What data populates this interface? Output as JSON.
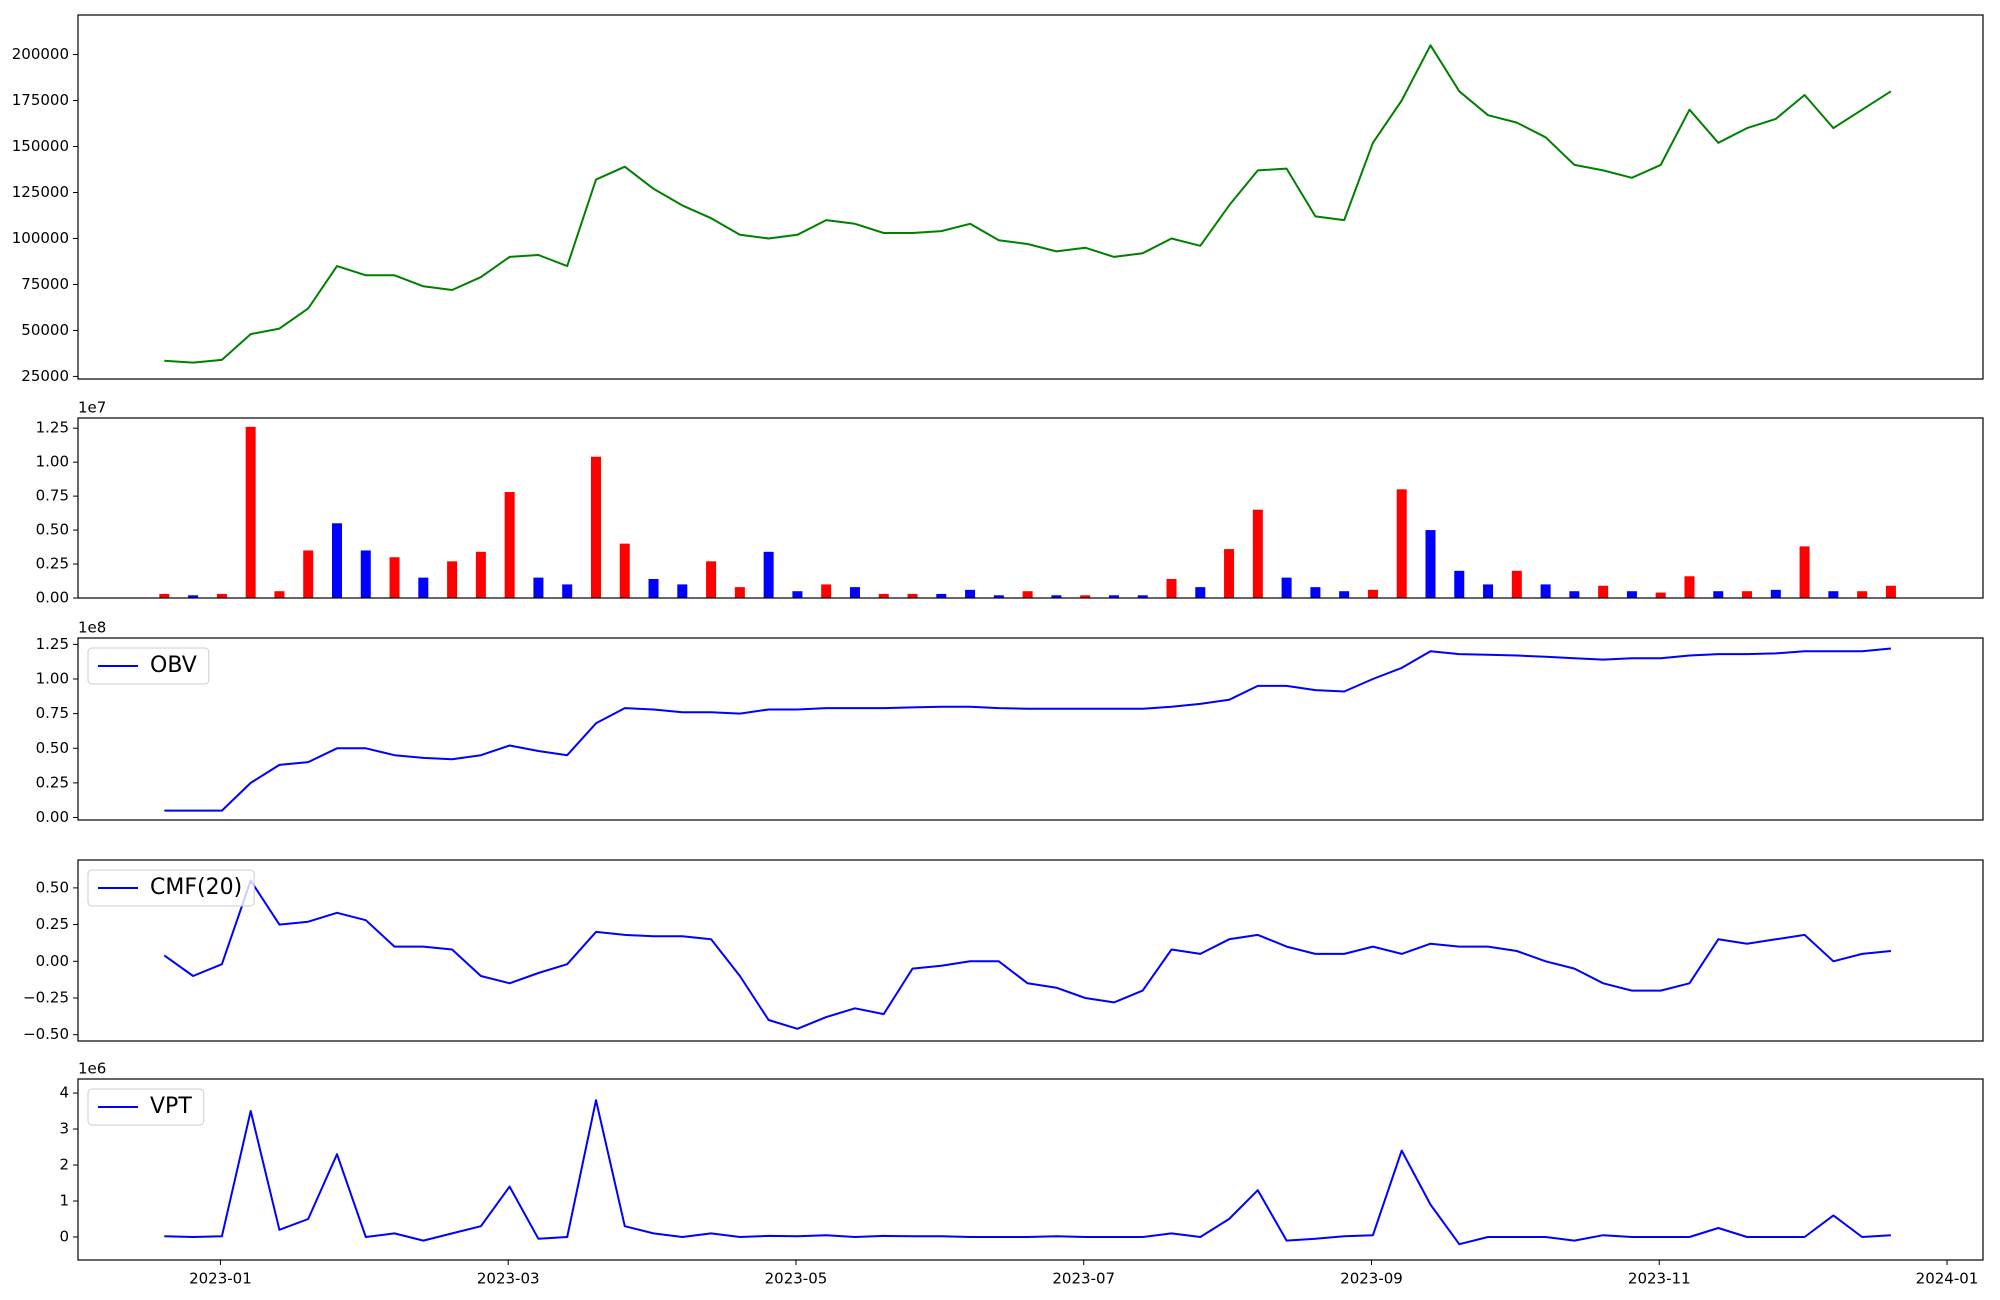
{
  "chart_data": [
    {
      "type": "line",
      "x": [
        -0.39,
        -0.19,
        0.01,
        0.21,
        0.41,
        0.61,
        0.81,
        1.01,
        1.21,
        1.41,
        1.61,
        1.81,
        2.01,
        2.21,
        2.41,
        2.61,
        2.81,
        3.01,
        3.21,
        3.41,
        3.61,
        3.81,
        4.01,
        4.21,
        4.41,
        4.61,
        4.81,
        5.01,
        5.21,
        5.41,
        5.61,
        5.81,
        6.01,
        6.21,
        6.41,
        6.61,
        6.81,
        7.01,
        7.21,
        7.41,
        7.61,
        7.81,
        8.01,
        8.21,
        8.41,
        8.61,
        8.81,
        9.01,
        9.21,
        9.41,
        9.61,
        9.81,
        10.01,
        10.21,
        10.41,
        10.61,
        10.81,
        11.01,
        11.21,
        11.41,
        11.61
      ],
      "series": [
        {
          "color": "#008000",
          "values": [
            33500,
            32500,
            34000,
            48000,
            51000,
            62000,
            85000,
            80000,
            80000,
            74000,
            72000,
            79000,
            90000,
            91000,
            85000,
            132000,
            139000,
            127000,
            118000,
            111000,
            102000,
            100000,
            102000,
            110000,
            108000,
            103000,
            103000,
            104000,
            108000,
            99000,
            97000,
            93000,
            95000,
            90000,
            92000,
            100000,
            96000,
            118000,
            137000,
            138000,
            112000,
            110000,
            152000,
            175000,
            205000,
            180000,
            167000,
            163000,
            155000,
            140000,
            137000,
            133000,
            140000,
            170000,
            152000,
            160000,
            165000,
            178000,
            160000,
            170000,
            180000
          ]
        }
      ],
      "xlim": [
        -0.99,
        12.25
      ],
      "ylim": [
        23600,
        221500
      ],
      "yticks": [
        25000,
        50000,
        75000,
        100000,
        125000,
        150000,
        175000,
        200000
      ]
    },
    {
      "type": "bar",
      "x": [
        -0.39,
        -0.19,
        0.01,
        0.21,
        0.41,
        0.61,
        0.81,
        1.01,
        1.21,
        1.41,
        1.61,
        1.81,
        2.01,
        2.21,
        2.41,
        2.61,
        2.81,
        3.01,
        3.21,
        3.41,
        3.61,
        3.81,
        4.01,
        4.21,
        4.41,
        4.61,
        4.81,
        5.01,
        5.21,
        5.41,
        5.61,
        5.81,
        6.01,
        6.21,
        6.41,
        6.61,
        6.81,
        7.01,
        7.21,
        7.41,
        7.61,
        7.81,
        8.01,
        8.21,
        8.41,
        8.61,
        8.81,
        9.01,
        9.21,
        9.41,
        9.61,
        9.81,
        10.01,
        10.21,
        10.41,
        10.61,
        10.81,
        11.01,
        11.21,
        11.41,
        11.61
      ],
      "values": [
        300000,
        200000,
        300000,
        12600000,
        500000,
        3500000,
        5500000,
        3500000,
        3000000,
        1500000,
        2700000,
        3400000,
        7800000,
        1500000,
        1000000,
        10400000,
        4000000,
        1400000,
        1000000,
        2700000,
        800000,
        3400000,
        500000,
        1000000,
        800000,
        300000,
        300000,
        300000,
        600000,
        200000,
        500000,
        200000,
        200000,
        200000,
        200000,
        1400000,
        800000,
        3600000,
        6500000,
        1500000,
        800000,
        500000,
        600000,
        8000000,
        5000000,
        2000000,
        1000000,
        2000000,
        1000000,
        500000,
        900000,
        500000,
        400000,
        1600000,
        500000,
        500000,
        600000,
        3800000,
        500000,
        500000,
        900000
      ],
      "bar_colors": [
        "red",
        "blue",
        "red",
        "red",
        "red",
        "red",
        "blue",
        "blue",
        "red",
        "blue",
        "red",
        "red",
        "red",
        "blue",
        "blue",
        "red",
        "red",
        "blue",
        "blue",
        "red",
        "red",
        "blue",
        "blue",
        "red",
        "blue",
        "red",
        "red",
        "blue",
        "blue",
        "blue",
        "red",
        "blue",
        "red",
        "blue",
        "blue",
        "red",
        "blue",
        "red",
        "red",
        "blue",
        "blue",
        "blue",
        "red",
        "red",
        "blue",
        "blue",
        "blue",
        "red",
        "blue",
        "blue",
        "red",
        "blue",
        "red",
        "red",
        "blue",
        "red",
        "blue",
        "red",
        "blue",
        "red",
        "red"
      ],
      "xlim": [
        -0.99,
        12.25
      ],
      "ylim": [
        0,
        13250000
      ],
      "y_offset_label": "1e7",
      "yticks": [
        {
          "value": 0,
          "label": "0.00"
        },
        {
          "value": 2500000,
          "label": "0.25"
        },
        {
          "value": 5000000,
          "label": "0.50"
        },
        {
          "value": 7500000,
          "label": "0.75"
        },
        {
          "value": 10000000,
          "label": "1.00"
        },
        {
          "value": 12500000,
          "label": "1.25"
        }
      ]
    },
    {
      "type": "line",
      "x": [
        -0.39,
        -0.19,
        0.01,
        0.21,
        0.41,
        0.61,
        0.81,
        1.01,
        1.21,
        1.41,
        1.61,
        1.81,
        2.01,
        2.21,
        2.41,
        2.61,
        2.81,
        3.01,
        3.21,
        3.41,
        3.61,
        3.81,
        4.01,
        4.21,
        4.41,
        4.61,
        4.81,
        5.01,
        5.21,
        5.41,
        5.61,
        5.81,
        6.01,
        6.21,
        6.41,
        6.61,
        6.81,
        7.01,
        7.21,
        7.41,
        7.61,
        7.81,
        8.01,
        8.21,
        8.41,
        8.61,
        8.81,
        9.01,
        9.21,
        9.41,
        9.61,
        9.81,
        10.01,
        10.21,
        10.41,
        10.61,
        10.81,
        11.01,
        11.21,
        11.41,
        11.61
      ],
      "series": [
        {
          "name": "OBV",
          "color": "#0000ff",
          "values": [
            5000000,
            5000000,
            5000000,
            25000000,
            38000000,
            40000000,
            50000000,
            50000000,
            45000000,
            43000000,
            42000000,
            45000000,
            52000000,
            48000000,
            45000000,
            68000000,
            79000000,
            78000000,
            76000000,
            76000000,
            75000000,
            78000000,
            78000000,
            79000000,
            79000000,
            79000000,
            79500000,
            80000000,
            80000000,
            79000000,
            78500000,
            78500000,
            78500000,
            78500000,
            78500000,
            80000000,
            82000000,
            85000000,
            95000000,
            95000000,
            92000000,
            91000000,
            100000000,
            108000000,
            120000000,
            118000000,
            117500000,
            117000000,
            116000000,
            115000000,
            114000000,
            115000000,
            115000000,
            117000000,
            118000000,
            118000000,
            118500000,
            120000000,
            120000000,
            120000000,
            122000000
          ]
        }
      ],
      "legend": "upper left",
      "xlim": [
        -0.99,
        12.25
      ],
      "ylim": [
        -1800000,
        129600000
      ],
      "y_offset_label": "1e8",
      "yticks": [
        {
          "value": 0,
          "label": "0.00"
        },
        {
          "value": 25000000,
          "label": "0.25"
        },
        {
          "value": 50000000,
          "label": "0.50"
        },
        {
          "value": 75000000,
          "label": "0.75"
        },
        {
          "value": 100000000,
          "label": "1.00"
        },
        {
          "value": 125000000,
          "label": "1.25"
        }
      ]
    },
    {
      "type": "line",
      "x": [
        -0.39,
        -0.19,
        0.01,
        0.21,
        0.41,
        0.61,
        0.81,
        1.01,
        1.21,
        1.41,
        1.61,
        1.81,
        2.01,
        2.21,
        2.41,
        2.61,
        2.81,
        3.01,
        3.21,
        3.41,
        3.61,
        3.81,
        4.01,
        4.21,
        4.41,
        4.61,
        4.81,
        5.01,
        5.21,
        5.41,
        5.61,
        5.81,
        6.01,
        6.21,
        6.41,
        6.61,
        6.81,
        7.01,
        7.21,
        7.41,
        7.61,
        7.81,
        8.01,
        8.21,
        8.41,
        8.61,
        8.81,
        9.01,
        9.21,
        9.41,
        9.61,
        9.81,
        10.01,
        10.21,
        10.41,
        10.61,
        10.81,
        11.01,
        11.21,
        11.41,
        11.61
      ],
      "series": [
        {
          "name": "CMF(20)",
          "color": "#0000ff",
          "values": [
            0.04,
            -0.1,
            -0.02,
            0.55,
            0.25,
            0.27,
            0.33,
            0.28,
            0.1,
            0.1,
            0.08,
            -0.1,
            -0.15,
            -0.08,
            -0.02,
            0.2,
            0.18,
            0.17,
            0.17,
            0.15,
            -0.1,
            -0.4,
            -0.46,
            -0.38,
            -0.32,
            -0.36,
            -0.05,
            -0.03,
            0,
            0,
            -0.15,
            -0.18,
            -0.25,
            -0.28,
            -0.2,
            0.08,
            0.05,
            0.15,
            0.18,
            0.1,
            0.05,
            0.05,
            0.1,
            0.05,
            0.12,
            0.1,
            0.1,
            0.07,
            0,
            -0.05,
            -0.15,
            -0.2,
            -0.2,
            -0.15,
            0.15,
            0.12,
            0.15,
            0.18,
            0,
            0.05,
            0.07
          ]
        }
      ],
      "legend": "upper left",
      "xlim": [
        -0.99,
        12.25
      ],
      "ylim": [
        -0.543,
        0.69
      ],
      "yticks": [
        {
          "value": -0.5,
          "label": "−0.50"
        },
        {
          "value": -0.25,
          "label": "−0.25"
        },
        {
          "value": 0,
          "label": "0.00"
        },
        {
          "value": 0.25,
          "label": "0.25"
        },
        {
          "value": 0.5,
          "label": "0.50"
        }
      ]
    },
    {
      "type": "line",
      "x": [
        -0.39,
        -0.19,
        0.01,
        0.21,
        0.41,
        0.61,
        0.81,
        1.01,
        1.21,
        1.41,
        1.61,
        1.81,
        2.01,
        2.21,
        2.41,
        2.61,
        2.81,
        3.01,
        3.21,
        3.41,
        3.61,
        3.81,
        4.01,
        4.21,
        4.41,
        4.61,
        4.81,
        5.01,
        5.21,
        5.41,
        5.61,
        5.81,
        6.01,
        6.21,
        6.41,
        6.61,
        6.81,
        7.01,
        7.21,
        7.41,
        7.61,
        7.81,
        8.01,
        8.21,
        8.41,
        8.61,
        8.81,
        9.01,
        9.21,
        9.41,
        9.61,
        9.81,
        10.01,
        10.21,
        10.41,
        10.61,
        10.81,
        11.01,
        11.21,
        11.41,
        11.61
      ],
      "series": [
        {
          "name": "VPT",
          "color": "#0000ff",
          "values": [
            20000,
            0,
            20000,
            3500000,
            200000,
            500000,
            2300000,
            0,
            100000,
            -100000,
            100000,
            300000,
            1400000,
            -50000,
            0,
            3800000,
            300000,
            100000,
            0,
            100000,
            0,
            30000,
            20000,
            50000,
            0,
            30000,
            20000,
            20000,
            0,
            0,
            0,
            20000,
            0,
            0,
            0,
            100000,
            0,
            500000,
            1300000,
            -100000,
            -50000,
            20000,
            50000,
            2400000,
            900000,
            -200000,
            0,
            0,
            0,
            -100000,
            50000,
            0,
            0,
            0,
            250000,
            0,
            0,
            0,
            600000,
            0,
            50000
          ]
        }
      ],
      "legend": "upper left",
      "xlim": [
        -0.99,
        12.25
      ],
      "ylim": [
        -640000,
        4390000
      ],
      "y_offset_label": "1e6",
      "yticks": [
        {
          "value": 0,
          "label": "0"
        },
        {
          "value": 1000000,
          "label": "1"
        },
        {
          "value": 2000000,
          "label": "2"
        },
        {
          "value": 3000000,
          "label": "3"
        },
        {
          "value": 4000000,
          "label": "4"
        }
      ],
      "xticks": [
        {
          "value": 0,
          "label": "2023-01"
        },
        {
          "value": 2,
          "label": "2023-03"
        },
        {
          "value": 4,
          "label": "2023-05"
        },
        {
          "value": 6,
          "label": "2023-07"
        },
        {
          "value": 8,
          "label": "2023-09"
        },
        {
          "value": 10,
          "label": "2023-11"
        },
        {
          "value": 12,
          "label": "2024-01"
        }
      ]
    }
  ]
}
